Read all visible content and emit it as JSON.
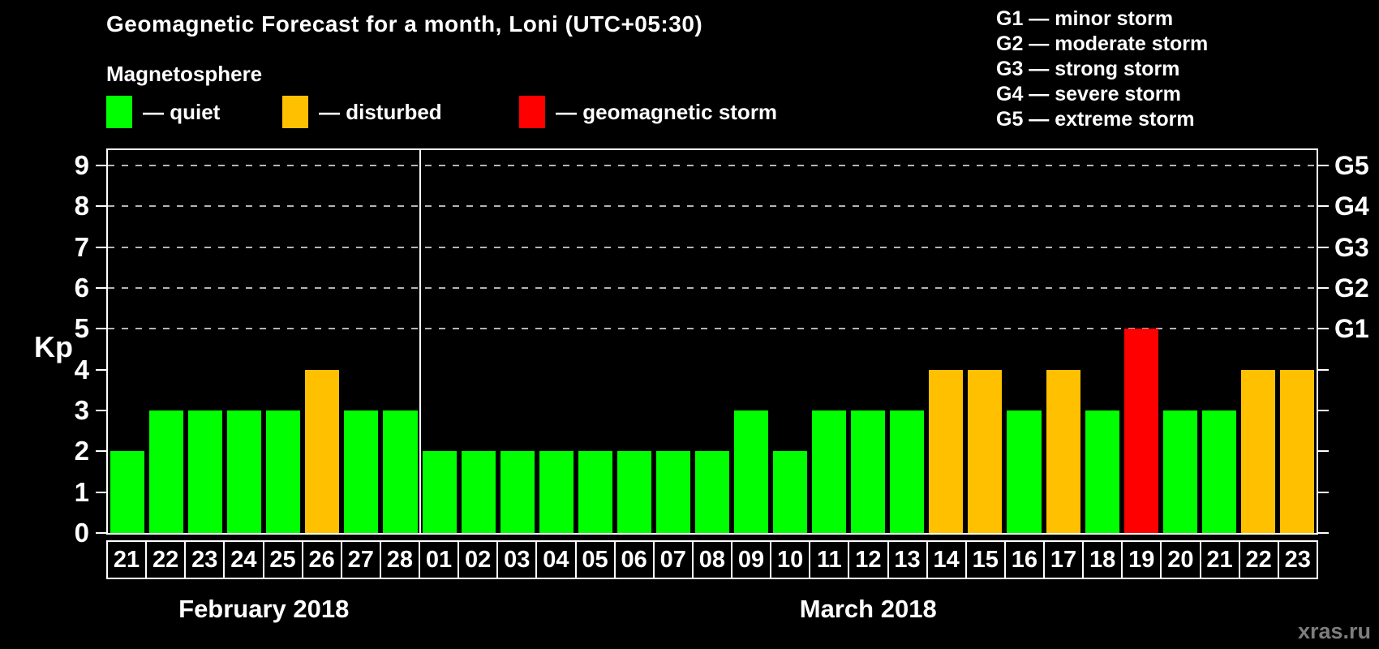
{
  "title": "Geomagnetic Forecast for a month, Loni (UTC+05:30)",
  "subtitle": "Magnetosphere",
  "legend": {
    "items": [
      {
        "name": "quiet",
        "label": "— quiet",
        "color": "#00ff00"
      },
      {
        "name": "disturbed",
        "label": "— disturbed",
        "color": "#ffc000"
      },
      {
        "name": "storm",
        "label": "— geomagnetic storm",
        "color": "#ff0000"
      }
    ]
  },
  "g_scale": [
    {
      "code": "G1",
      "label": "G1 — minor storm"
    },
    {
      "code": "G2",
      "label": "G2 — moderate storm"
    },
    {
      "code": "G3",
      "label": "G3 — strong storm"
    },
    {
      "code": "G4",
      "label": "G4 — severe storm"
    },
    {
      "code": "G5",
      "label": "G5 — extreme storm"
    }
  ],
  "watermark": "xras.ru",
  "chart_data": {
    "type": "bar",
    "title": "Geomagnetic Forecast for a month, Loni (UTC+05:30)",
    "ylabel": "Kp",
    "ylim": [
      0,
      9
    ],
    "yticks": [
      0,
      1,
      2,
      3,
      4,
      5,
      6,
      7,
      8,
      9
    ],
    "gridlines_at": [
      5,
      6,
      7,
      8,
      9
    ],
    "grid_style": "dashed",
    "legend_position": "top-left",
    "right_axis": [
      {
        "kp": 5,
        "label": "G1"
      },
      {
        "kp": 6,
        "label": "G2"
      },
      {
        "kp": 7,
        "label": "G3"
      },
      {
        "kp": 8,
        "label": "G4"
      },
      {
        "kp": 9,
        "label": "G5"
      }
    ],
    "status_colors": {
      "quiet": "#00ff00",
      "disturbed": "#ffc000",
      "storm": "#ff0000"
    },
    "months": [
      {
        "label": "February 2018",
        "days": [
          {
            "day": "21",
            "kp": 2,
            "status": "quiet"
          },
          {
            "day": "22",
            "kp": 3,
            "status": "quiet"
          },
          {
            "day": "23",
            "kp": 3,
            "status": "quiet"
          },
          {
            "day": "24",
            "kp": 3,
            "status": "quiet"
          },
          {
            "day": "25",
            "kp": 3,
            "status": "quiet"
          },
          {
            "day": "26",
            "kp": 4,
            "status": "disturbed"
          },
          {
            "day": "27",
            "kp": 3,
            "status": "quiet"
          },
          {
            "day": "28",
            "kp": 3,
            "status": "quiet"
          }
        ]
      },
      {
        "label": "March 2018",
        "days": [
          {
            "day": "01",
            "kp": 2,
            "status": "quiet"
          },
          {
            "day": "02",
            "kp": 2,
            "status": "quiet"
          },
          {
            "day": "03",
            "kp": 2,
            "status": "quiet"
          },
          {
            "day": "04",
            "kp": 2,
            "status": "quiet"
          },
          {
            "day": "05",
            "kp": 2,
            "status": "quiet"
          },
          {
            "day": "06",
            "kp": 2,
            "status": "quiet"
          },
          {
            "day": "07",
            "kp": 2,
            "status": "quiet"
          },
          {
            "day": "08",
            "kp": 2,
            "status": "quiet"
          },
          {
            "day": "09",
            "kp": 3,
            "status": "quiet"
          },
          {
            "day": "10",
            "kp": 2,
            "status": "quiet"
          },
          {
            "day": "11",
            "kp": 3,
            "status": "quiet"
          },
          {
            "day": "12",
            "kp": 3,
            "status": "quiet"
          },
          {
            "day": "13",
            "kp": 3,
            "status": "quiet"
          },
          {
            "day": "14",
            "kp": 4,
            "status": "disturbed"
          },
          {
            "day": "15",
            "kp": 4,
            "status": "disturbed"
          },
          {
            "day": "16",
            "kp": 3,
            "status": "quiet"
          },
          {
            "day": "17",
            "kp": 4,
            "status": "disturbed"
          },
          {
            "day": "18",
            "kp": 3,
            "status": "quiet"
          },
          {
            "day": "19",
            "kp": 5,
            "status": "storm"
          },
          {
            "day": "20",
            "kp": 3,
            "status": "quiet"
          },
          {
            "day": "21",
            "kp": 3,
            "status": "quiet"
          },
          {
            "day": "22",
            "kp": 4,
            "status": "disturbed"
          },
          {
            "day": "23",
            "kp": 4,
            "status": "disturbed"
          }
        ]
      }
    ]
  }
}
